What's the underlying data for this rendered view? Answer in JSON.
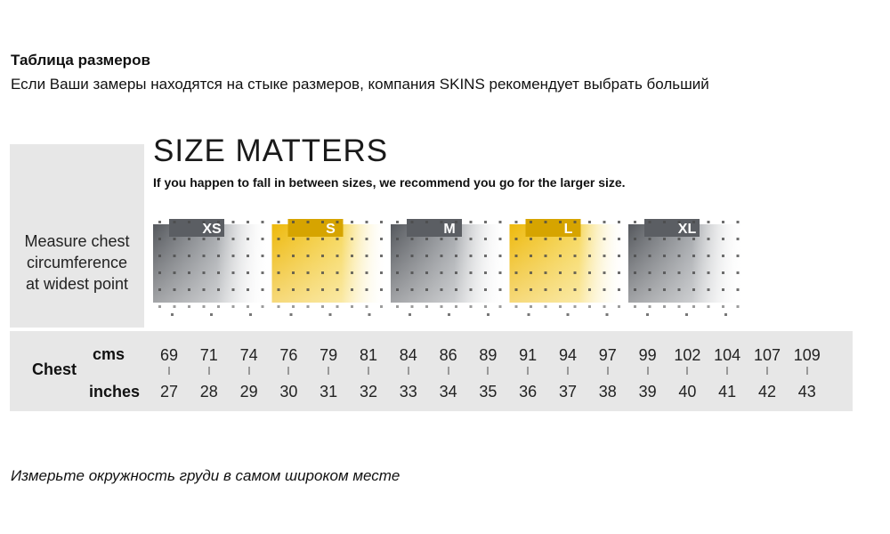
{
  "header": {
    "title": "Таблица размеров",
    "subtitle": "Если Ваши замеры находятся на стыке размеров, компания SKINS рекомендует выбрать больший"
  },
  "footer": {
    "note": "Измерьте окружность груди в самом широком месте"
  },
  "chart": {
    "headline": "SIZE MATTERS",
    "subheadline": "If you happen to fall in between sizes, we recommend you go for the larger size.",
    "measure_label": [
      "Measure chest",
      "circumference",
      "at widest point"
    ],
    "sizes": [
      {
        "label": "XS",
        "color": "grey"
      },
      {
        "label": "S",
        "color": "yellow"
      },
      {
        "label": "M",
        "color": "grey"
      },
      {
        "label": "L",
        "color": "yellow"
      },
      {
        "label": "XL",
        "color": "grey"
      }
    ],
    "colors": {
      "grey_dark": "#5b5e63",
      "grey_mid": "#8e9196",
      "yellow": "#f1bd11",
      "yellow_dark": "#d6a400",
      "dot": "#4a4a4a",
      "background": "#e7e7e7"
    },
    "chest": {
      "title": "Chest",
      "unit_cm": "cms",
      "unit_inch": "inches",
      "cms": [
        "69",
        "71",
        "74",
        "76",
        "79",
        "81",
        "84",
        "86",
        "89",
        "91",
        "94",
        "97",
        "99",
        "102",
        "104",
        "107",
        "109"
      ],
      "inches": [
        "27",
        "28",
        "29",
        "30",
        "31",
        "32",
        "33",
        "34",
        "35",
        "36",
        "37",
        "38",
        "39",
        "40",
        "41",
        "42",
        "43"
      ]
    }
  }
}
